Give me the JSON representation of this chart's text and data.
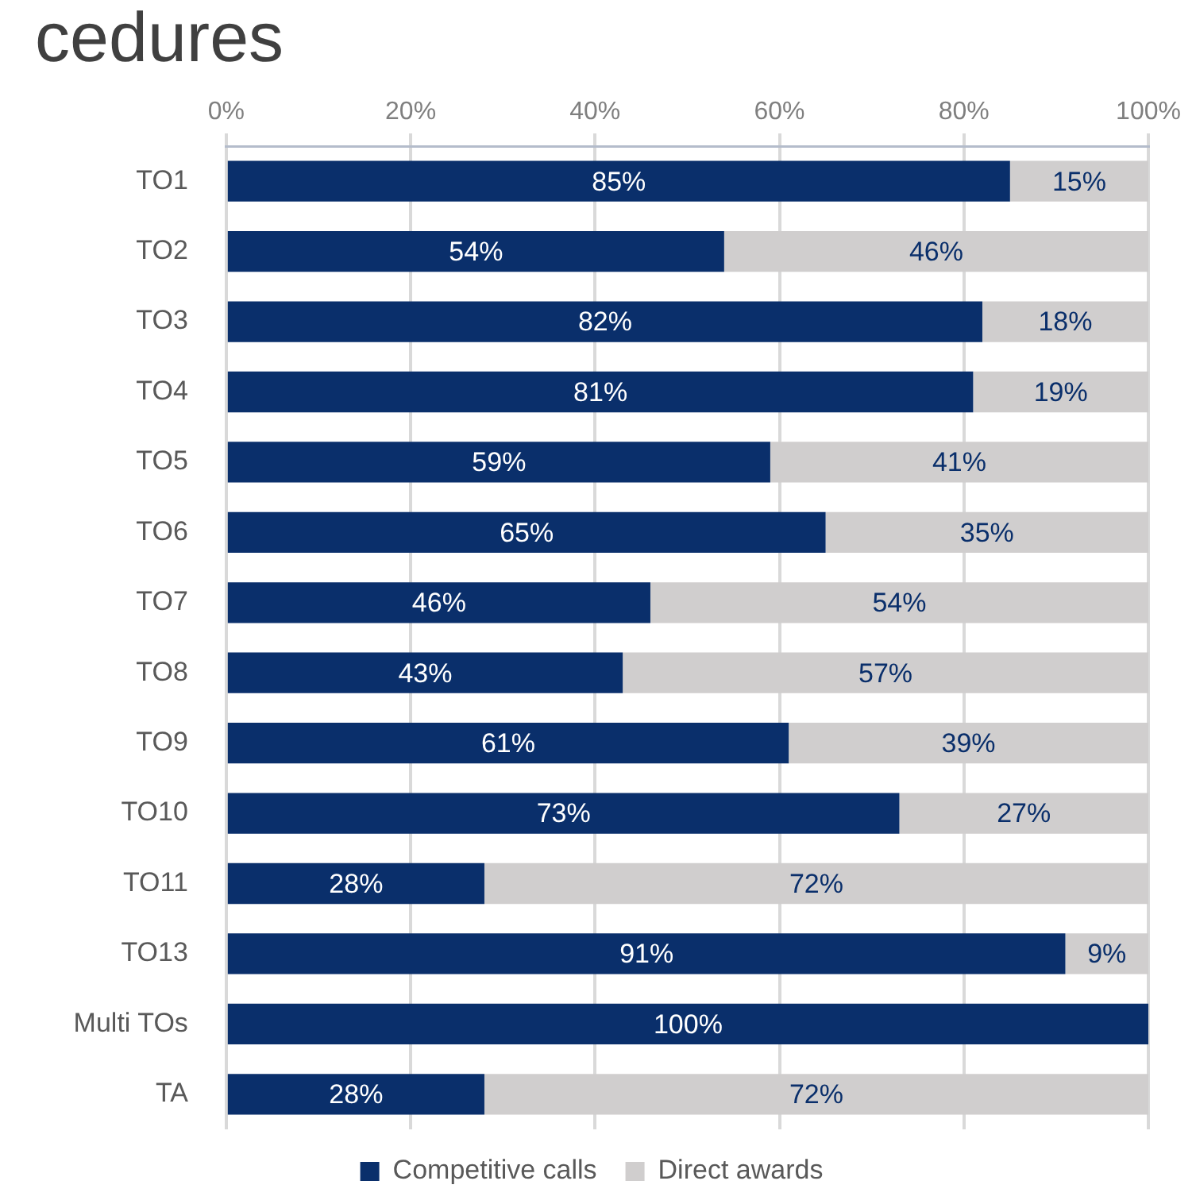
{
  "chart_data": {
    "type": "bar",
    "orientation": "horizontal",
    "stacked": true,
    "title": "cedures",
    "categories": [
      "TO1",
      "TO2",
      "TO3",
      "TO4",
      "TO5",
      "TO6",
      "TO7",
      "TO8",
      "TO9",
      "TO10",
      "TO11",
      "TO13",
      "Multi TOs",
      "TA"
    ],
    "series": [
      {
        "name": "Competitive calls",
        "color": "#0a2f6b",
        "values": [
          85,
          54,
          82,
          81,
          59,
          65,
          46,
          43,
          61,
          73,
          28,
          91,
          100,
          28
        ],
        "value_labels": [
          "85%",
          "54%",
          "82%",
          "81%",
          "59%",
          "65%",
          "46%",
          "43%",
          "61%",
          "73%",
          "28%",
          "91%",
          "100%",
          "28%"
        ]
      },
      {
        "name": "Direct awards",
        "color": "#d0cece",
        "values": [
          15,
          46,
          18,
          19,
          41,
          35,
          54,
          57,
          39,
          27,
          72,
          9,
          0,
          72
        ],
        "value_labels": [
          "15%",
          "46%",
          "18%",
          "19%",
          "41%",
          "35%",
          "54%",
          "57%",
          "39%",
          "27%",
          "72%",
          "9%",
          null,
          "72%"
        ]
      }
    ],
    "xlim": [
      0,
      100
    ],
    "xticks": [
      {
        "value": 0,
        "label": "0%"
      },
      {
        "value": 20,
        "label": "20%"
      },
      {
        "value": 40,
        "label": "40%"
      },
      {
        "value": 60,
        "label": "60%"
      },
      {
        "value": 80,
        "label": "80%"
      },
      {
        "value": 100,
        "label": "100%"
      }
    ],
    "grid": "x",
    "legend": "bottom"
  }
}
